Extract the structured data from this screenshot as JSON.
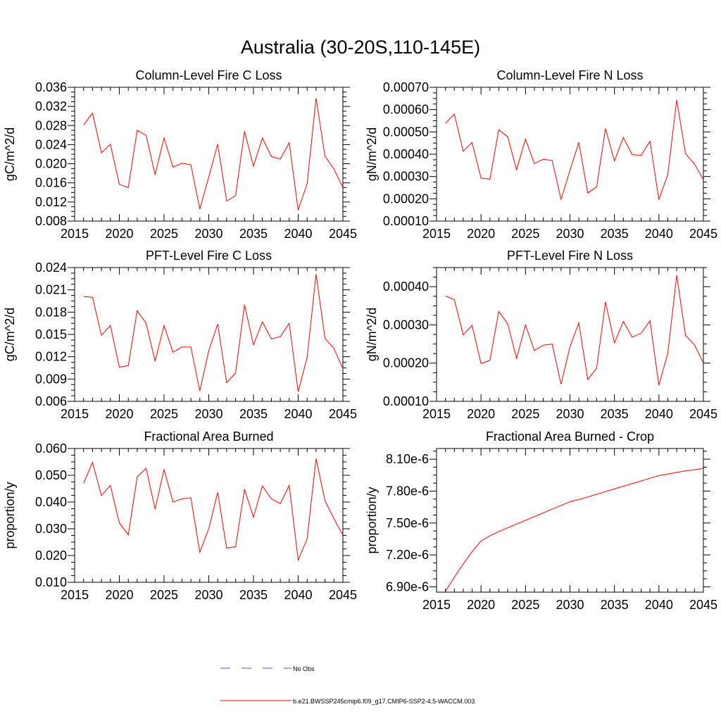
{
  "figure": {
    "title": "Australia (30-20S,110-145E)",
    "legend": [
      {
        "label": "No Obs",
        "color": "#4f5fa8",
        "style": "dashed"
      },
      {
        "label": "b.e21.BWSSP245cmip6.f09_g17.CMIP6-SSP2-4.5-WACCM.003",
        "color": "#ff0000",
        "style": "solid"
      }
    ],
    "colors": {
      "series": "#ff0000",
      "axis": "#000000"
    }
  },
  "chart_data": [
    {
      "type": "line",
      "title": "Column-Level Fire C Loss",
      "ylabel": "gC/m^2/d",
      "xlim": [
        2015,
        2045
      ],
      "ylim": [
        0.008,
        0.036
      ],
      "xticks": [
        "2015",
        "2020",
        "2025",
        "2030",
        "2035",
        "2040",
        "2045"
      ],
      "yticks": [
        "0.008",
        "0.012",
        "0.016",
        "0.020",
        "0.024",
        "0.028",
        "0.032",
        "0.036"
      ],
      "x": [
        2016,
        2017,
        2018,
        2019,
        2020,
        2021,
        2022,
        2023,
        2024,
        2025,
        2026,
        2027,
        2028,
        2029,
        2030,
        2031,
        2032,
        2033,
        2034,
        2035,
        2036,
        2037,
        2038,
        2039,
        2040,
        2041,
        2042,
        2043,
        2044,
        2045
      ],
      "series": [
        {
          "name": "b.e21.BWSSP245cmip6.f09_g17.CMIP6-SSP2-4.5-WACCM.003",
          "values": [
            0.0281,
            0.0306,
            0.0223,
            0.0241,
            0.0157,
            0.015,
            0.027,
            0.0259,
            0.0177,
            0.0254,
            0.0193,
            0.0201,
            0.0198,
            0.0105,
            0.0172,
            0.0241,
            0.0122,
            0.0133,
            0.0268,
            0.0195,
            0.0254,
            0.0215,
            0.021,
            0.0244,
            0.0103,
            0.0158,
            0.0337,
            0.0216,
            0.0189,
            0.015
          ]
        }
      ]
    },
    {
      "type": "line",
      "title": "Column-Level Fire N Loss",
      "ylabel": "gN/m^2/d",
      "xlim": [
        2015,
        2045
      ],
      "ylim": [
        0.0001,
        0.0007
      ],
      "xticks": [
        "2015",
        "2020",
        "2025",
        "2030",
        "2035",
        "2040",
        "2045"
      ],
      "yticks": [
        "0.00010",
        "0.00020",
        "0.00030",
        "0.00040",
        "0.00050",
        "0.00060",
        "0.00070"
      ],
      "x": [
        2016,
        2017,
        2018,
        2019,
        2020,
        2021,
        2022,
        2023,
        2024,
        2025,
        2026,
        2027,
        2028,
        2029,
        2030,
        2031,
        2032,
        2033,
        2034,
        2035,
        2036,
        2037,
        2038,
        2039,
        2040,
        2041,
        2042,
        2043,
        2044,
        2045
      ],
      "series": [
        {
          "name": "b.e21.BWSSP245cmip6.f09_g17.CMIP6-SSP2-4.5-WACCM.003",
          "values": [
            0.000538,
            0.00058,
            0.000413,
            0.000452,
            0.000293,
            0.000288,
            0.00051,
            0.000478,
            0.00033,
            0.000468,
            0.000358,
            0.000377,
            0.000372,
            0.000198,
            0.000327,
            0.000453,
            0.000226,
            0.000253,
            0.000515,
            0.00037,
            0.000475,
            0.000398,
            0.000395,
            0.000458,
            0.000196,
            0.00031,
            0.000643,
            0.000402,
            0.000356,
            0.000285
          ]
        }
      ]
    },
    {
      "type": "line",
      "title": "PFT-Level Fire C Loss",
      "ylabel": "gC/m^2/d",
      "xlim": [
        2015,
        2045
      ],
      "ylim": [
        0.006,
        0.024
      ],
      "xticks": [
        "2015",
        "2020",
        "2025",
        "2030",
        "2035",
        "2040",
        "2045"
      ],
      "yticks": [
        "0.006",
        "0.009",
        "0.012",
        "0.015",
        "0.018",
        "0.021",
        "0.024"
      ],
      "x": [
        2016,
        2017,
        2018,
        2019,
        2020,
        2021,
        2022,
        2023,
        2024,
        2025,
        2026,
        2027,
        2028,
        2029,
        2030,
        2031,
        2032,
        2033,
        2034,
        2035,
        2036,
        2037,
        2038,
        2039,
        2040,
        2041,
        2042,
        2043,
        2044,
        2045
      ],
      "series": [
        {
          "name": "b.e21.BWSSP245cmip6.f09_g17.CMIP6-SSP2-4.5-WACCM.003",
          "values": [
            0.0201,
            0.02,
            0.0149,
            0.0162,
            0.0106,
            0.0108,
            0.0182,
            0.0165,
            0.0114,
            0.0162,
            0.0126,
            0.0133,
            0.0133,
            0.0074,
            0.0128,
            0.0164,
            0.0085,
            0.0098,
            0.019,
            0.0136,
            0.0167,
            0.0144,
            0.0147,
            0.0165,
            0.0073,
            0.0119,
            0.0231,
            0.0145,
            0.0131,
            0.0104
          ]
        }
      ]
    },
    {
      "type": "line",
      "title": "PFT-Level Fire N Loss",
      "ylabel": "gN/m^2/d",
      "xlim": [
        2015,
        2045
      ],
      "ylim": [
        0.0001,
        0.00045
      ],
      "xticks": [
        "2015",
        "2020",
        "2025",
        "2030",
        "2035",
        "2040",
        "2045"
      ],
      "yticks": [
        "0.00010",
        "0.00020",
        "0.00030",
        "0.00040"
      ],
      "x": [
        2016,
        2017,
        2018,
        2019,
        2020,
        2021,
        2022,
        2023,
        2024,
        2025,
        2026,
        2027,
        2028,
        2029,
        2030,
        2031,
        2032,
        2033,
        2034,
        2035,
        2036,
        2037,
        2038,
        2039,
        2040,
        2041,
        2042,
        2043,
        2044,
        2045
      ],
      "series": [
        {
          "name": "b.e21.BWSSP245cmip6.f09_g17.CMIP6-SSP2-4.5-WACCM.003",
          "values": [
            0.000376,
            0.000366,
            0.000274,
            0.000299,
            0.000199,
            0.000207,
            0.000335,
            0.000303,
            0.000212,
            0.0003,
            0.000233,
            0.000247,
            0.00025,
            0.000145,
            0.000243,
            0.000305,
            0.000157,
            0.000187,
            0.00036,
            0.000253,
            0.000309,
            0.000268,
            0.000278,
            0.000311,
            0.000142,
            0.000226,
            0.00043,
            0.000272,
            0.000248,
            0.0002
          ]
        }
      ]
    },
    {
      "type": "line",
      "title": "Fractional Area Burned",
      "ylabel": "proportion/y",
      "xlim": [
        2015,
        2045
      ],
      "ylim": [
        0.01,
        0.06
      ],
      "xticks": [
        "2015",
        "2020",
        "2025",
        "2030",
        "2035",
        "2040",
        "2045"
      ],
      "yticks": [
        "0.010",
        "0.020",
        "0.030",
        "0.040",
        "0.050",
        "0.060"
      ],
      "x": [
        2016,
        2017,
        2018,
        2019,
        2020,
        2021,
        2022,
        2023,
        2024,
        2025,
        2026,
        2027,
        2028,
        2029,
        2030,
        2031,
        2032,
        2033,
        2034,
        2035,
        2036,
        2037,
        2038,
        2039,
        2040,
        2041,
        2042,
        2043,
        2044,
        2045
      ],
      "series": [
        {
          "name": "b.e21.BWSSP245cmip6.f09_g17.CMIP6-SSP2-4.5-WACCM.003",
          "values": [
            0.047,
            0.0548,
            0.0424,
            0.0462,
            0.0322,
            0.0277,
            0.0494,
            0.0526,
            0.0373,
            0.0522,
            0.04,
            0.0412,
            0.0416,
            0.0212,
            0.03,
            0.0436,
            0.0228,
            0.0233,
            0.0448,
            0.0343,
            0.046,
            0.0412,
            0.0394,
            0.0462,
            0.0183,
            0.0262,
            0.0562,
            0.0405,
            0.0338,
            0.0276
          ]
        }
      ]
    },
    {
      "type": "line",
      "title": "Fractional Area Burned - Crop",
      "ylabel": "proportion/y",
      "xlim": [
        2015,
        2045
      ],
      "ylim": [
        6.85e-06,
        8.2e-06
      ],
      "xticks": [
        "2015",
        "2020",
        "2025",
        "2030",
        "2035",
        "2040",
        "2045"
      ],
      "yticks": [
        "6.90e-6",
        "7.20e-6",
        "7.50e-6",
        "7.80e-6",
        "8.10e-6"
      ],
      "ytick_values": [
        6.9e-06,
        7.2e-06,
        7.5e-06,
        7.8e-06,
        8.1e-06
      ],
      "x": [
        2016,
        2017,
        2018,
        2019,
        2020,
        2021,
        2022,
        2023,
        2024,
        2025,
        2026,
        2027,
        2028,
        2029,
        2030,
        2031,
        2032,
        2033,
        2034,
        2035,
        2036,
        2037,
        2038,
        2039,
        2040,
        2041,
        2042,
        2043,
        2044,
        2045
      ],
      "series": [
        {
          "name": "b.e21.BWSSP245cmip6.f09_g17.CMIP6-SSP2-4.5-WACCM.003",
          "values": [
            6.855e-06,
            6.99e-06,
            7.115e-06,
            7.23e-06,
            7.33e-06,
            7.38e-06,
            7.42e-06,
            7.455e-06,
            7.49e-06,
            7.525e-06,
            7.56e-06,
            7.595e-06,
            7.63e-06,
            7.665e-06,
            7.7e-06,
            7.72e-06,
            7.745e-06,
            7.77e-06,
            7.795e-06,
            7.82e-06,
            7.845e-06,
            7.87e-06,
            7.895e-06,
            7.92e-06,
            7.945e-06,
            7.96e-06,
            7.975e-06,
            7.99e-06,
            8e-06,
            8.015e-06
          ]
        }
      ]
    }
  ]
}
